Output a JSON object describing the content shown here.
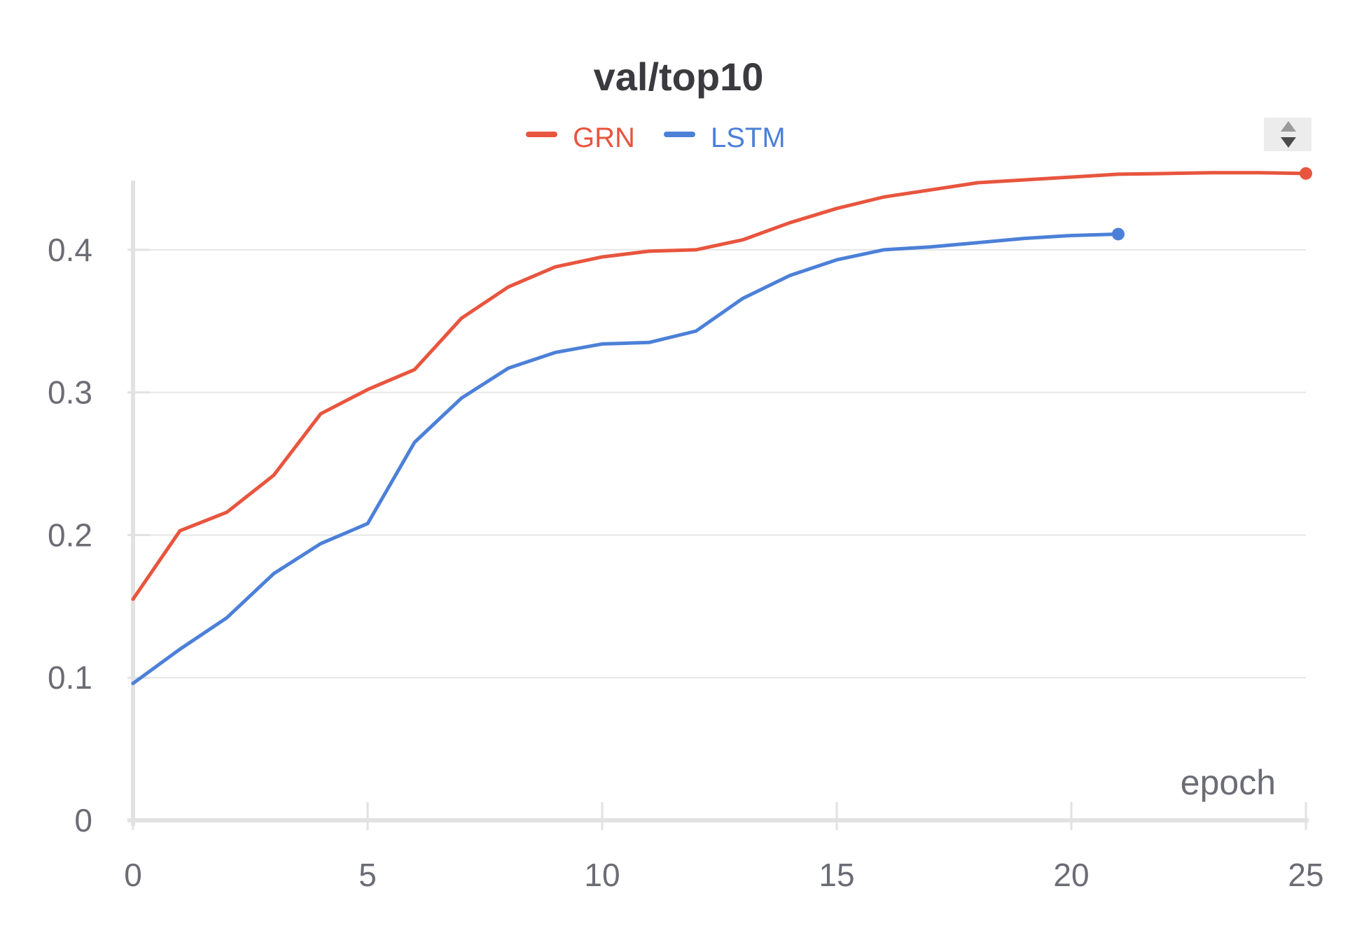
{
  "chart_data": {
    "type": "line",
    "title": "val/top10",
    "xlabel": "epoch",
    "ylabel": "",
    "xlim": [
      0,
      25
    ],
    "ylim": [
      0,
      0.45
    ],
    "x_ticks": [
      0,
      5,
      10,
      15,
      20,
      25
    ],
    "y_ticks": [
      0,
      0.1,
      0.2,
      0.3,
      0.4
    ],
    "x_tick_labels": [
      "0",
      "5",
      "10",
      "15",
      "20",
      "25"
    ],
    "y_tick_labels": [
      "0",
      "0.1",
      "0.2",
      "0.3",
      "0.4"
    ],
    "grid": "horizontal",
    "legend_position": "top-center",
    "series": [
      {
        "name": "GRN",
        "color": "#e8553e",
        "x": [
          0,
          1,
          2,
          3,
          4,
          5,
          6,
          7,
          8,
          9,
          10,
          11,
          12,
          13,
          14,
          15,
          16,
          17,
          18,
          19,
          20,
          21,
          22,
          23,
          24,
          25
        ],
        "values": [
          0.155,
          0.203,
          0.216,
          0.242,
          0.285,
          0.302,
          0.316,
          0.352,
          0.374,
          0.388,
          0.395,
          0.399,
          0.4,
          0.407,
          0.419,
          0.429,
          0.437,
          0.442,
          0.447,
          0.449,
          0.451,
          0.453,
          0.4535,
          0.454,
          0.454,
          0.4535
        ]
      },
      {
        "name": "LSTM",
        "color": "#4c80d8",
        "x": [
          0,
          1,
          2,
          3,
          4,
          5,
          6,
          7,
          8,
          9,
          10,
          11,
          12,
          13,
          14,
          15,
          16,
          17,
          18,
          19,
          20,
          21
        ],
        "values": [
          0.096,
          0.12,
          0.142,
          0.173,
          0.194,
          0.208,
          0.265,
          0.296,
          0.317,
          0.328,
          0.334,
          0.335,
          0.343,
          0.366,
          0.382,
          0.393,
          0.4,
          0.402,
          0.405,
          0.408,
          0.41,
          0.411
        ]
      }
    ]
  },
  "ui": {
    "sort_control_icon": "sort-up-down-icon"
  }
}
